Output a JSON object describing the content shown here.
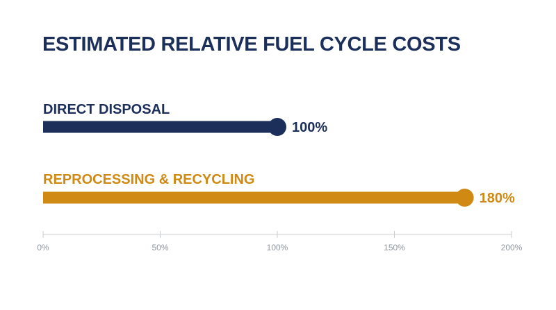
{
  "chart_data": {
    "type": "bar",
    "orientation": "horizontal",
    "title": "ESTIMATED RELATIVE FUEL CYCLE COSTS",
    "categories": [
      "DIRECT DISPOSAL",
      "REPROCESSING & RECYCLING"
    ],
    "values": [
      100,
      180
    ],
    "value_labels": [
      "100%",
      "180%"
    ],
    "colors": [
      "#1b2f5a",
      "#d08a14"
    ],
    "xlim": [
      0,
      200
    ],
    "x_ticks": [
      0,
      50,
      100,
      150,
      200
    ],
    "x_tick_labels": [
      "0%",
      "50%",
      "100%",
      "150%",
      "200%"
    ],
    "grid": false,
    "legend": "none"
  }
}
